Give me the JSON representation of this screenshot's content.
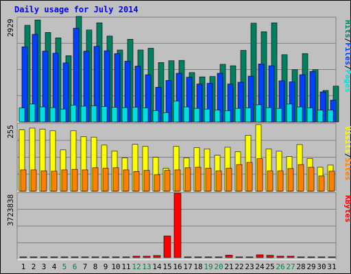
{
  "window": {
    "title": "Daily usage for July 2014"
  },
  "colors": {
    "pages": "#00E0E0",
    "files": "#0040FF",
    "hits": "#008060",
    "visits": "#FFFF00",
    "sites": "#FF8000",
    "kbytes": "#FF0000",
    "title": "#0000FF",
    "weekend_label": "#008040",
    "weekday_label": "#000000"
  },
  "chart_data": [
    {
      "type": "bar",
      "title": "Daily usage for July 2014",
      "ymax_label": "2929",
      "ylim": [
        0,
        2929
      ],
      "legend": [
        "Pages",
        "/",
        "Files",
        "/",
        "Hits"
      ],
      "legend_placement": "right-vertical",
      "categories": [
        "1",
        "2",
        "3",
        "4",
        "5",
        "6",
        "7",
        "8",
        "9",
        "10",
        "11",
        "12",
        "13",
        "14",
        "15",
        "16",
        "17",
        "18",
        "19",
        "20",
        "21",
        "22",
        "23",
        "24",
        "25",
        "26",
        "27",
        "28",
        "29",
        "30",
        "31"
      ],
      "series": [
        {
          "name": "Hits",
          "values": [
            2700,
            2850,
            2500,
            2350,
            1850,
            2950,
            2570,
            2770,
            2400,
            2010,
            2310,
            2010,
            2060,
            1660,
            1710,
            1720,
            1380,
            1260,
            1270,
            1610,
            1570,
            2000,
            2760,
            2520,
            2770,
            1880,
            1460,
            1910,
            1460,
            880,
            1000
          ]
        },
        {
          "name": "Files",
          "values": [
            2100,
            2450,
            1980,
            1920,
            1650,
            2620,
            1980,
            2110,
            1990,
            1910,
            1700,
            1560,
            1320,
            970,
            1160,
            1360,
            1250,
            1060,
            1080,
            1360,
            1060,
            1110,
            1280,
            1620,
            1570,
            1150,
            1120,
            1320,
            1410,
            840,
            610
          ]
        },
        {
          "name": "Pages",
          "values": [
            390,
            500,
            420,
            400,
            360,
            470,
            440,
            450,
            430,
            410,
            400,
            410,
            390,
            320,
            260,
            580,
            420,
            380,
            360,
            330,
            310,
            380,
            390,
            480,
            400,
            380,
            500,
            420,
            390,
            330,
            330
          ]
        }
      ]
    },
    {
      "type": "bar",
      "ymax_label": "255",
      "ylim": [
        0,
        255
      ],
      "legend": [
        "Sites",
        "/",
        "Visits"
      ],
      "legend_placement": "right-vertical",
      "categories": [
        "1",
        "2",
        "3",
        "4",
        "5",
        "6",
        "7",
        "8",
        "9",
        "10",
        "11",
        "12",
        "13",
        "14",
        "15",
        "16",
        "17",
        "18",
        "19",
        "20",
        "21",
        "22",
        "23",
        "24",
        "25",
        "26",
        "27",
        "28",
        "29",
        "30",
        "31"
      ],
      "series": [
        {
          "name": "Visits",
          "values": [
            230,
            237,
            233,
            227,
            155,
            227,
            205,
            203,
            173,
            151,
            125,
            176,
            168,
            127,
            86,
            168,
            125,
            163,
            159,
            135,
            165,
            148,
            210,
            250,
            158,
            150,
            130,
            175,
            123,
            90,
            98
          ]
        },
        {
          "name": "Sites",
          "values": [
            80,
            80,
            76,
            75,
            80,
            82,
            80,
            88,
            86,
            88,
            80,
            74,
            78,
            62,
            78,
            80,
            88,
            90,
            86,
            76,
            86,
            100,
            108,
            122,
            76,
            76,
            85,
            100,
            90,
            57,
            75
          ]
        }
      ]
    },
    {
      "type": "bar",
      "ymax_label": "3723838",
      "ylim": [
        0,
        3723838
      ],
      "legend": [
        "KBytes"
      ],
      "legend_placement": "right-vertical",
      "categories": [
        "1",
        "2",
        "3",
        "4",
        "5",
        "6",
        "7",
        "8",
        "9",
        "10",
        "11",
        "12",
        "13",
        "14",
        "15",
        "16",
        "17",
        "18",
        "19",
        "20",
        "21",
        "22",
        "23",
        "24",
        "25",
        "26",
        "27",
        "28",
        "29",
        "30",
        "31"
      ],
      "series": [
        {
          "name": "KBytes",
          "values": [
            40000,
            40000,
            40000,
            40000,
            40000,
            40000,
            40000,
            40000,
            40000,
            40000,
            40000,
            80000,
            80000,
            120000,
            1250000,
            3723838,
            40000,
            40000,
            40000,
            40000,
            140000,
            40000,
            40000,
            160000,
            130000,
            80000,
            80000,
            40000,
            40000,
            40000,
            40000
          ]
        }
      ]
    }
  ],
  "x_labels": {
    "weekend_days": [
      "5",
      "6",
      "12",
      "13",
      "19",
      "20",
      "26",
      "27"
    ]
  }
}
